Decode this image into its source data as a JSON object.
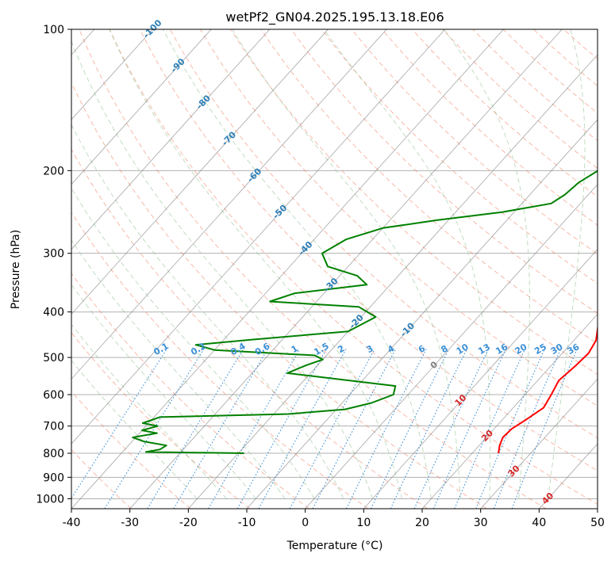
{
  "chart_data": {
    "type": "line",
    "title": "wetPf2_GN04.2025.195.13.18.E06",
    "xlabel": "Temperature (°C)",
    "ylabel": "Pressure (hPa)",
    "xlim": [
      -40,
      50
    ],
    "ylim": [
      1050,
      100
    ],
    "y_scale": "log",
    "x_ticks": [
      "-40",
      "-30",
      "-20",
      "-10",
      "0",
      "10",
      "20",
      "30",
      "40",
      "50"
    ],
    "y_ticks": [
      "100",
      "200",
      "300",
      "400",
      "500",
      "600",
      "700",
      "800",
      "900",
      "1000"
    ],
    "grid": true,
    "series": [
      {
        "color": "#ff0000",
        "points": [
          [
            24.5,
            800
          ],
          [
            23.5,
            770
          ],
          [
            22.8,
            740
          ],
          [
            23.0,
            710
          ],
          [
            24.0,
            680
          ],
          [
            25.2,
            640
          ],
          [
            24.5,
            600
          ],
          [
            23.6,
            560
          ],
          [
            24.2,
            520
          ],
          [
            24.5,
            490
          ],
          [
            23.8,
            460
          ],
          [
            22.0,
            430
          ],
          [
            20.0,
            400
          ],
          [
            19.5,
            380
          ],
          [
            19.0,
            360
          ],
          [
            17.0,
            340
          ],
          [
            15.5,
            320
          ],
          [
            14.8,
            300
          ],
          [
            12.0,
            280
          ],
          [
            8.5,
            255
          ],
          [
            5.0,
            230
          ],
          [
            2.0,
            205
          ],
          [
            -1.0,
            185
          ],
          [
            -3.5,
            165
          ],
          [
            -5.5,
            150
          ],
          [
            -8.0,
            135
          ],
          [
            -10.5,
            122
          ],
          [
            -11.5,
            112
          ],
          [
            -10.5,
            107
          ],
          [
            -7.0,
            103
          ],
          [
            -4.0,
            100
          ]
        ]
      },
      {
        "color": "#008000",
        "points": [
          [
            -19.0,
            800
          ],
          [
            -36.0,
            795
          ],
          [
            -34.0,
            785
          ],
          [
            -33.5,
            770
          ],
          [
            -38.0,
            755
          ],
          [
            -40.5,
            740
          ],
          [
            -37.0,
            725
          ],
          [
            -40.0,
            715
          ],
          [
            -38.0,
            700
          ],
          [
            -41.0,
            690
          ],
          [
            -39.0,
            670
          ],
          [
            -17.5,
            660
          ],
          [
            -8.5,
            645
          ],
          [
            -5.0,
            625
          ],
          [
            -2.5,
            600
          ],
          [
            -3.5,
            575
          ],
          [
            -15.0,
            555
          ],
          [
            -24.0,
            540
          ],
          [
            -22.0,
            520
          ],
          [
            -20.0,
            505
          ],
          [
            -22.0,
            495
          ],
          [
            -40.0,
            482
          ],
          [
            -44.0,
            470
          ],
          [
            -35.0,
            458
          ],
          [
            -20.0,
            440
          ],
          [
            -17.5,
            410
          ],
          [
            -22.0,
            390
          ],
          [
            -38.0,
            380
          ],
          [
            -35.0,
            365
          ],
          [
            -24.0,
            350
          ],
          [
            -27.0,
            335
          ],
          [
            -33.5,
            320
          ],
          [
            -36.5,
            300
          ],
          [
            -34.5,
            280
          ],
          [
            -30.0,
            265
          ],
          [
            -22.0,
            255
          ],
          [
            -12.0,
            245
          ],
          [
            -5.0,
            235
          ],
          [
            -4.0,
            225
          ],
          [
            -3.5,
            212
          ],
          [
            -1.0,
            192
          ],
          [
            0.0,
            180
          ],
          [
            -0.5,
            160
          ],
          [
            -1.5,
            147
          ],
          [
            -3.0,
            137
          ],
          [
            -7.0,
            124
          ],
          [
            -8.5,
            114
          ],
          [
            -8.5,
            108
          ],
          [
            -5.0,
            104
          ],
          [
            -2.0,
            101
          ],
          [
            0.5,
            100
          ]
        ]
      }
    ],
    "isotherm_labels": [
      "-100",
      "-90",
      "-80",
      "-70",
      "-60",
      "-50",
      "-40",
      "-30",
      "-20",
      "-10",
      "0",
      "10",
      "20",
      "30",
      "40"
    ],
    "mixing_ratio_labels": [
      "0.1",
      "0.2",
      "0.4",
      "0.6",
      "1",
      "1.5",
      "2",
      "3",
      "4",
      "6",
      "8",
      "10",
      "13",
      "16",
      "20",
      "25",
      "30",
      "36"
    ]
  },
  "colors": {
    "isotherm": "#808080",
    "dry_adiabat": "#f08060",
    "moist_adiabat": "#90c090",
    "mixing_ratio": "#3b8fd6",
    "isobar": "#b0b0b0",
    "label_cold": "#2d7fb8",
    "label_warm": "#d62728",
    "label_zero": "#808080",
    "label_mixing": "#3b8fd6"
  }
}
